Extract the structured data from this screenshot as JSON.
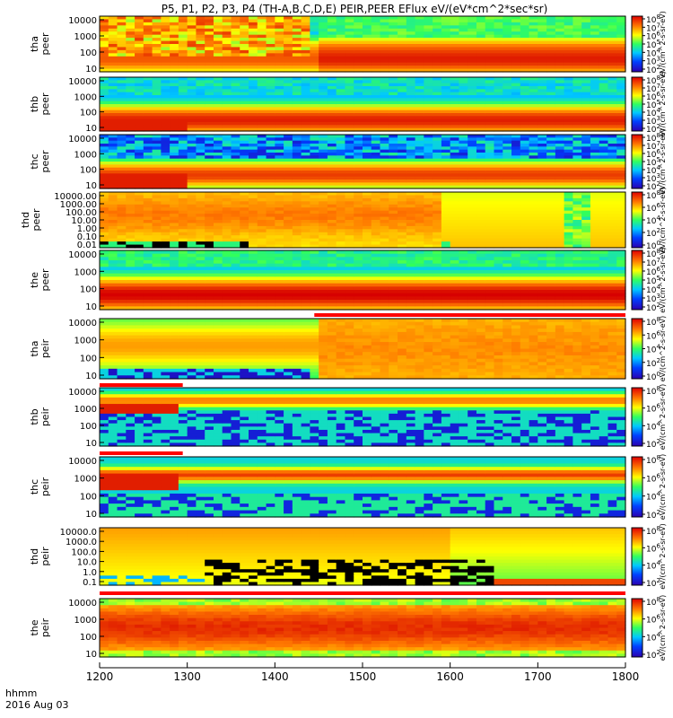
{
  "title": "P5, P1, P2, P3, P4 (TH-A,B,C,D,E) PEIR,PEER EFlux eV/(eV*cm^2*sec*sr)",
  "time_label": "hhmm",
  "date_label": "2016 Aug 03",
  "chart_data": {
    "type": "heatmap",
    "x_ticks": [
      "1200",
      "1300",
      "1400",
      "1500",
      "1600",
      "1700",
      "1800"
    ],
    "xlim": [
      1200,
      1800
    ],
    "colorbar_unit": "eV/(cm^2-s-sr-eV)",
    "panels": [
      {
        "name": "tha peer",
        "ylabel": [
          "tha",
          "peer"
        ],
        "y_ticks": [
          "10000",
          "1000",
          "100",
          "10"
        ],
        "colorbar_ticks": [
          "10^8",
          "10^7",
          "10^6",
          "10^5",
          "10^4",
          "10^3",
          "10^2"
        ],
        "pattern": "peer_a"
      },
      {
        "name": "thb peer",
        "ylabel": [
          "thb",
          "peer"
        ],
        "y_ticks": [
          "10000",
          "1000",
          "100",
          "10"
        ],
        "colorbar_ticks": [
          "10^8",
          "10^7",
          "10^6",
          "10^5",
          "10^4",
          "10^3",
          "10^2"
        ],
        "pattern": "peer_b"
      },
      {
        "name": "thc peer",
        "ylabel": [
          "thc",
          "peer"
        ],
        "y_ticks": [
          "10000",
          "1000",
          "100",
          "10"
        ],
        "colorbar_ticks": [
          "10^8",
          "10^7",
          "10^6",
          "10^5",
          "10^4",
          "10^3",
          "10^2"
        ],
        "pattern": "peer_c"
      },
      {
        "name": "thd peer",
        "ylabel": [
          "thd",
          "peer"
        ],
        "y_ticks": [
          "10000.00",
          "1000.00",
          "100.00",
          "10.00",
          "1.00",
          "0.10",
          "0.01"
        ],
        "colorbar_ticks": [
          "10^8",
          "10^6",
          "10^4",
          "10^2",
          "10^0"
        ],
        "pattern": "peer_d"
      },
      {
        "name": "the peer",
        "ylabel": [
          "the",
          "peer"
        ],
        "y_ticks": [
          "10000",
          "1000",
          "100",
          "10"
        ],
        "colorbar_ticks": [
          "10^8",
          "10^7",
          "10^6",
          "10^5",
          "10^4",
          "10^3",
          "10^2"
        ],
        "pattern": "peer_e"
      },
      {
        "name": "tha peir",
        "ylabel": [
          "tha",
          "peir"
        ],
        "y_ticks": [
          "10000",
          "1000",
          "100",
          "10"
        ],
        "colorbar_ticks": [
          "10^8",
          "10^6",
          "10^4",
          "10^2",
          "10^0"
        ],
        "pattern": "peir_a"
      },
      {
        "name": "thb peir",
        "ylabel": [
          "thb",
          "peir"
        ],
        "y_ticks": [
          "10000",
          "1000",
          "100",
          "10"
        ],
        "colorbar_ticks": [
          "10^8",
          "10^6",
          "10^4",
          "10^2"
        ],
        "pattern": "peir_b"
      },
      {
        "name": "thc peir",
        "ylabel": [
          "thc",
          "peir"
        ],
        "y_ticks": [
          "10000",
          "1000",
          "100",
          "10"
        ],
        "colorbar_ticks": [
          "10^8",
          "10^6",
          "10^4",
          "10^2"
        ],
        "pattern": "peir_c"
      },
      {
        "name": "thd peir",
        "ylabel": [
          "thd",
          "peir"
        ],
        "y_ticks": [
          "10000.0",
          "1000.0",
          "100.0",
          "10.0",
          "1.0",
          "0.1"
        ],
        "colorbar_ticks": [
          "10^8",
          "10^6",
          "10^4",
          "10^2"
        ],
        "pattern": "peir_d"
      },
      {
        "name": "the peir",
        "ylabel": [
          "the",
          "peir"
        ],
        "y_ticks": [
          "10000",
          "1000",
          "100",
          "10"
        ],
        "colorbar_ticks": [
          "10^8",
          "10^6",
          "10^4",
          "10^2"
        ],
        "pattern": "peir_e"
      }
    ],
    "mode_bars": [
      {
        "after_panel": 4,
        "segments": [
          {
            "from": 1200,
            "to": 1445,
            "color": "#ffffff"
          },
          {
            "from": 1445,
            "to": 1800,
            "color": "#ff0000"
          }
        ]
      },
      {
        "after_panel": 5,
        "segments": [
          {
            "from": 1200,
            "to": 1295,
            "color": "#ff0000"
          },
          {
            "from": 1295,
            "to": 1800,
            "color": "#ffffff"
          }
        ]
      },
      {
        "after_panel": 6,
        "segments": [
          {
            "from": 1200,
            "to": 1295,
            "color": "#ff0000"
          },
          {
            "from": 1295,
            "to": 1800,
            "color": "#ffffff"
          }
        ]
      },
      {
        "after_panel": 8,
        "segments": [
          {
            "from": 1200,
            "to": 1800,
            "color": "#ff0000"
          }
        ]
      }
    ]
  }
}
